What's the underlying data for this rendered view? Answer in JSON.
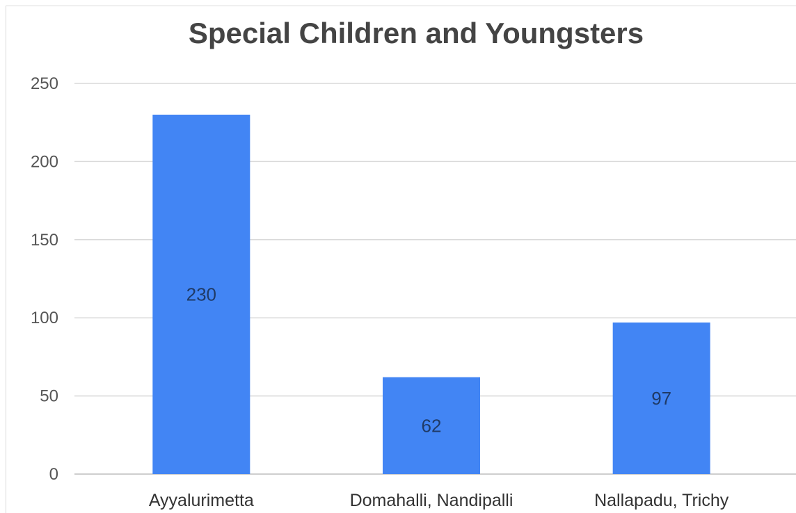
{
  "chart_data": {
    "type": "bar",
    "title": "Special Children and Youngsters",
    "categories": [
      "Ayyalurimetta",
      "Domahalli, Nandipalli",
      "Nallapadu, Trichy"
    ],
    "series": [
      {
        "values": [
          230,
          62,
          97
        ]
      }
    ],
    "data_labels": [
      "230",
      "62",
      "97"
    ],
    "xlabel": "",
    "ylabel": "",
    "ylim": [
      0,
      250
    ],
    "yticks": [
      0,
      50,
      100,
      150,
      200,
      250
    ],
    "grid": true,
    "legend": "none",
    "bar_color": "#4285f4",
    "grid_color": "#d9d9d9"
  }
}
